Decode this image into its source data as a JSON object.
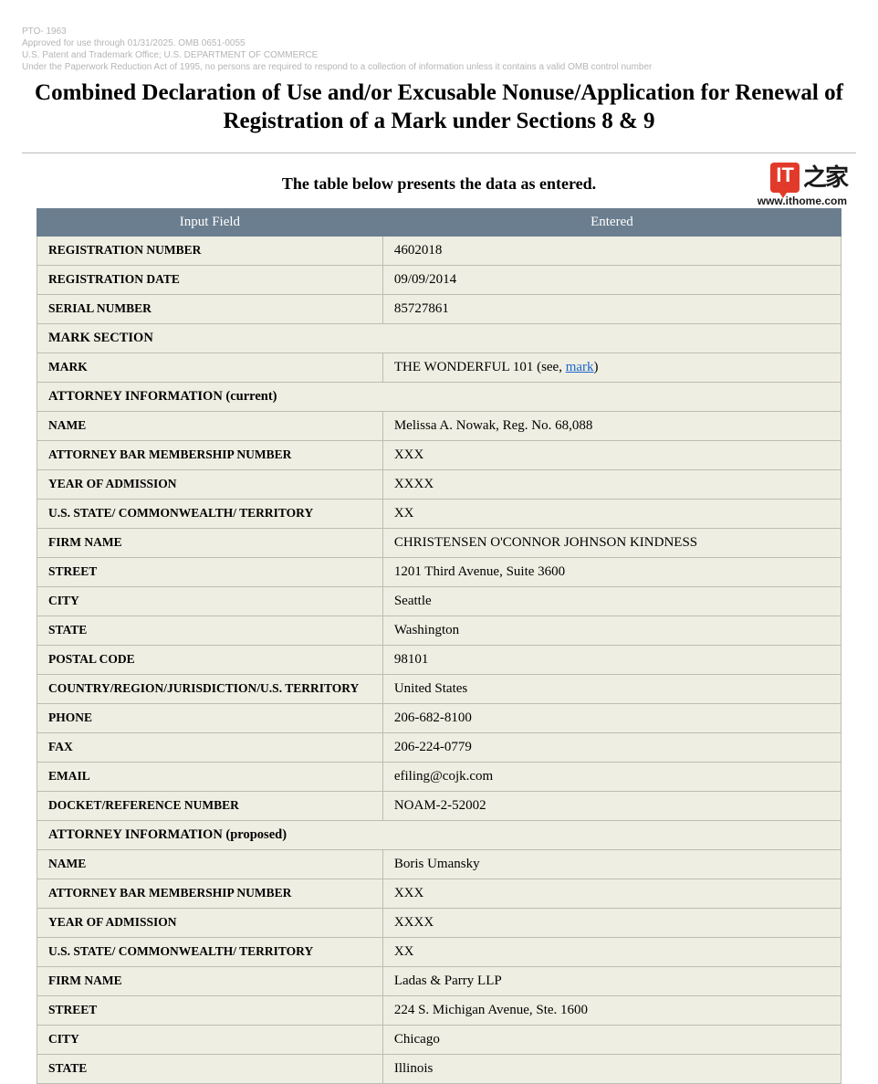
{
  "meta": {
    "line1": "PTO- 1963",
    "line2": "Approved for use through 01/31/2025. OMB 0651-0055",
    "line3": "U.S. Patent and Trademark Office; U.S. DEPARTMENT OF COMMERCE",
    "line4": "Under the Paperwork Reduction Act of 1995, no persons are required to respond to a collection of information unless it contains a valid OMB control number"
  },
  "title": "Combined Declaration of Use and/or Excusable Nonuse/Application for Renewal of Registration of a Mark under Sections 8 & 9",
  "watermark": {
    "box": "IT",
    "cn": "之家",
    "url": "www.ithome.com"
  },
  "subtitle": "The table below presents the data as entered.",
  "headers": {
    "input_field": "Input Field",
    "entered": "Entered"
  },
  "rows": [
    {
      "label": "REGISTRATION NUMBER",
      "value": "4602018"
    },
    {
      "label": "REGISTRATION DATE",
      "value": "09/09/2014"
    },
    {
      "label": "SERIAL NUMBER",
      "value": "85727861"
    }
  ],
  "section_mark": "MARK SECTION",
  "mark_row": {
    "label": "MARK",
    "value_prefix": "THE WONDERFUL 101 (see, ",
    "link_text": "mark",
    "value_suffix": ")"
  },
  "section_attorney_current": "ATTORNEY INFORMATION (current)",
  "attorney_current": [
    {
      "label": "NAME",
      "value": "Melissa A. Nowak, Reg. No. 68,088"
    },
    {
      "label": "ATTORNEY BAR MEMBERSHIP NUMBER",
      "value": "XXX"
    },
    {
      "label": "YEAR OF ADMISSION",
      "value": "XXXX"
    },
    {
      "label": "U.S. STATE/ COMMONWEALTH/ TERRITORY",
      "value": "XX"
    },
    {
      "label": "FIRM NAME",
      "value": "CHRISTENSEN O'CONNOR JOHNSON KINDNESS"
    },
    {
      "label": "STREET",
      "value": "1201 Third Avenue, Suite 3600"
    },
    {
      "label": "CITY",
      "value": "Seattle"
    },
    {
      "label": "STATE",
      "value": "Washington"
    },
    {
      "label": "POSTAL CODE",
      "value": "98101"
    },
    {
      "label": "COUNTRY/REGION/JURISDICTION/U.S. TERRITORY",
      "value": "United States"
    },
    {
      "label": "PHONE",
      "value": "206-682-8100"
    },
    {
      "label": "FAX",
      "value": "206-224-0779"
    },
    {
      "label": "EMAIL",
      "value": "efiling@cojk.com"
    },
    {
      "label": "DOCKET/REFERENCE NUMBER",
      "value": "NOAM-2-52002"
    }
  ],
  "section_attorney_proposed": "ATTORNEY INFORMATION (proposed)",
  "attorney_proposed": [
    {
      "label": "NAME",
      "value": "Boris Umansky"
    },
    {
      "label": "ATTORNEY BAR MEMBERSHIP NUMBER",
      "value": "XXX"
    },
    {
      "label": "YEAR OF ADMISSION",
      "value": "XXXX"
    },
    {
      "label": "U.S. STATE/ COMMONWEALTH/ TERRITORY",
      "value": "XX"
    },
    {
      "label": "FIRM NAME",
      "value": "Ladas & Parry LLP"
    },
    {
      "label": "STREET",
      "value": "224 S. Michigan Avenue, Ste. 1600"
    },
    {
      "label": "CITY",
      "value": "Chicago"
    },
    {
      "label": "STATE",
      "value": "Illinois"
    }
  ]
}
